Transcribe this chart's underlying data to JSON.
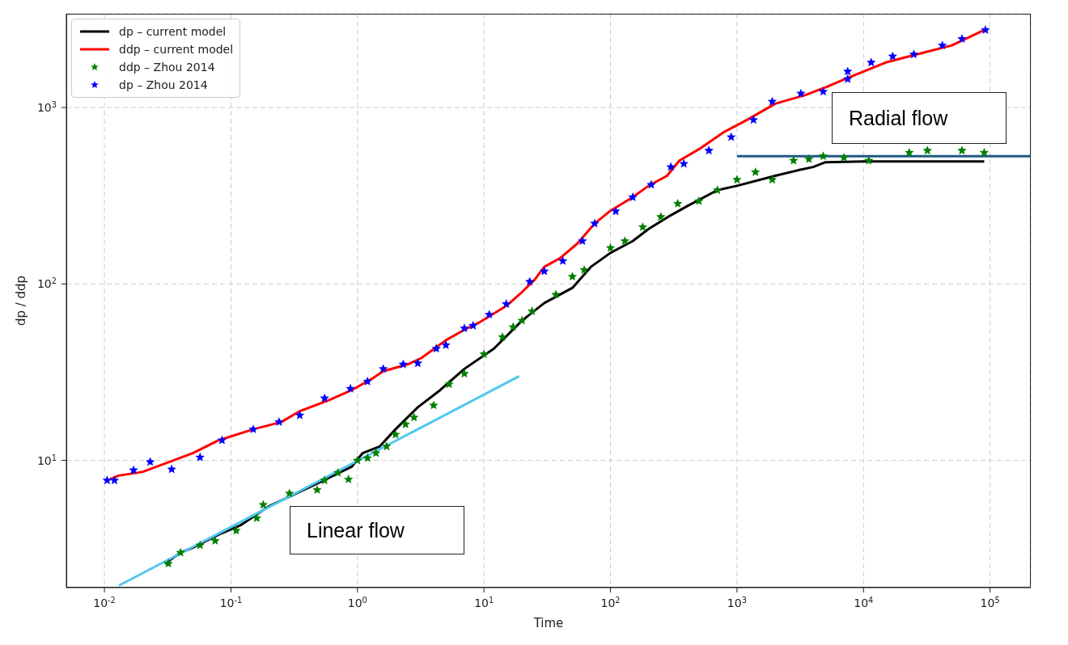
{
  "chart_data": {
    "type": "line",
    "xlabel": "Time",
    "ylabel": "dp / ddp",
    "log": "xy",
    "grid": true,
    "legend": "top left",
    "xlim": [
      0.005,
      210000
    ],
    "ylim": [
      1.9,
      3400
    ],
    "xticks": [
      {
        "value": 0.01,
        "label": "10$^{-2}$"
      },
      {
        "value": 0.1,
        "label": "10$^{-1}$"
      },
      {
        "value": 1,
        "label": "10$^{0}$"
      },
      {
        "value": 10,
        "label": "10$^{1}$"
      },
      {
        "value": 100,
        "label": "10$^{2}$"
      },
      {
        "value": 1000,
        "label": "10$^{3}$"
      },
      {
        "value": 10000,
        "label": "10$^{4}$"
      },
      {
        "value": 100000,
        "label": "10$^{5}$"
      }
    ],
    "yticks": [
      {
        "value": 10,
        "label": "10$^{1}$"
      },
      {
        "value": 100,
        "label": "10$^{2}$"
      },
      {
        "value": 1000,
        "label": "10$^{3}$"
      }
    ],
    "annotations": [
      "Linear flow",
      "Radial flow"
    ],
    "series": [
      {
        "name": "dp – current model",
        "color": "#000000",
        "x": [
          0.03,
          0.04,
          0.05,
          0.08,
          0.12,
          0.2,
          0.3,
          0.5,
          0.9,
          1.1,
          1.5,
          2,
          3,
          4.5,
          7,
          12,
          20,
          30,
          50,
          70,
          100,
          150,
          200,
          300,
          400,
          700,
          1000,
          2000,
          3000,
          4000,
          5000,
          10000,
          90000
        ],
        "values": [
          2.6,
          3.0,
          3.2,
          3.8,
          4.3,
          5.5,
          6.3,
          7.5,
          9.2,
          11,
          12,
          15,
          20,
          25,
          33,
          43,
          62,
          78,
          95,
          125,
          150,
          175,
          205,
          245,
          275,
          340,
          360,
          410,
          440,
          460,
          490,
          495,
          495
        ]
      },
      {
        "name": "ddp – current model",
        "color": "#ff0000",
        "x": [
          0.011,
          0.013,
          0.02,
          0.05,
          0.08,
          0.15,
          0.25,
          0.35,
          0.6,
          0.9,
          1.3,
          1.6,
          2.5,
          3.2,
          5,
          7,
          9,
          15,
          20,
          25,
          30,
          40,
          55,
          75,
          100,
          150,
          200,
          280,
          350,
          500,
          800,
          1200,
          2000,
          3500,
          5000,
          8000,
          15000,
          30000,
          50000,
          90000
        ],
        "values": [
          7.8,
          8.2,
          8.6,
          11,
          13,
          15,
          16.5,
          19,
          22,
          25,
          29,
          32,
          35,
          38,
          48,
          55,
          60,
          75,
          90,
          105,
          125,
          140,
          170,
          220,
          260,
          310,
          360,
          410,
          500,
          580,
          730,
          850,
          1050,
          1180,
          1300,
          1500,
          1800,
          2050,
          2250,
          2750
        ]
      },
      {
        "type": "scatter",
        "name": "ddp – Zhou 2014",
        "color": "#008000",
        "marker": "star",
        "x": [
          0.032,
          0.04,
          0.057,
          0.075,
          0.11,
          0.16,
          0.18,
          0.29,
          0.48,
          0.55,
          0.7,
          0.85,
          1.0,
          1.2,
          1.4,
          1.7,
          2,
          2.4,
          2.8,
          4,
          5.3,
          7,
          10,
          14,
          17,
          20,
          24,
          37,
          50,
          62,
          100,
          130,
          180,
          250,
          340,
          500,
          700,
          1000,
          1400,
          1900,
          2800,
          3700,
          4800,
          7000,
          11000,
          23000,
          32000,
          60000,
          90000
        ],
        "values": [
          2.6,
          3.0,
          3.3,
          3.5,
          4.0,
          4.7,
          5.6,
          6.5,
          6.8,
          7.7,
          8.5,
          7.8,
          10,
          10.3,
          11,
          12,
          14,
          16,
          17.5,
          20.5,
          27,
          31,
          40,
          50,
          57,
          62,
          70,
          87,
          110,
          120,
          160,
          175,
          210,
          240,
          285,
          295,
          340,
          390,
          430,
          390,
          500,
          510,
          530,
          520,
          500,
          555,
          570,
          570,
          555
        ]
      },
      {
        "type": "scatter",
        "name": "dp – Zhou 2014",
        "color": "#0000ff",
        "marker": "star",
        "x": [
          0.0105,
          0.012,
          0.017,
          0.023,
          0.034,
          0.057,
          0.085,
          0.15,
          0.24,
          0.35,
          0.55,
          0.88,
          1.2,
          1.6,
          2.3,
          3,
          4.2,
          5,
          7,
          8.2,
          11,
          15,
          23,
          30,
          42,
          60,
          75,
          110,
          150,
          210,
          300,
          380,
          600,
          900,
          1350,
          1900,
          3200,
          4800,
          7500,
          7500,
          11500,
          17000,
          25000,
          42000,
          60000,
          92000
        ],
        "values": [
          7.7,
          7.7,
          8.8,
          9.8,
          8.9,
          10.4,
          13,
          15,
          16.5,
          18,
          22.5,
          25.5,
          28,
          33,
          35,
          35.5,
          43,
          45,
          56,
          58,
          67,
          77,
          103,
          118,
          135,
          175,
          220,
          258,
          310,
          365,
          460,
          480,
          570,
          680,
          850,
          1080,
          1200,
          1230,
          1450,
          1600,
          1800,
          1950,
          2000,
          2250,
          2450,
          2750
        ]
      },
      {
        "color": "#4fc8f0",
        "x": [
          0.013,
          19
        ],
        "values": [
          1.95,
          30
        ]
      },
      {
        "color": "#1f5a85",
        "x": [
          1000,
          210000
        ],
        "values": [
          530,
          530
        ]
      }
    ]
  }
}
